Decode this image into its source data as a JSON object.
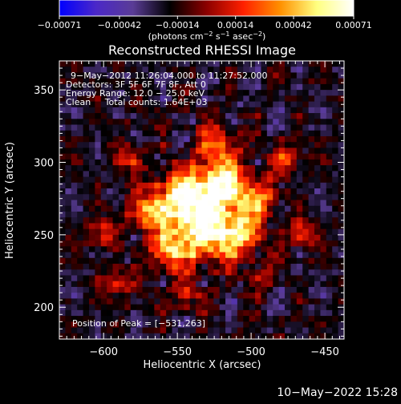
{
  "chart_data": {
    "type": "heatmap",
    "title": "Reconstructed RHESSI Image",
    "xlabel": "Heliocentric X (arcsec)",
    "ylabel": "Heliocentric Y (arcsec)",
    "xlim": [
      -630,
      -437
    ],
    "ylim": [
      178,
      370
    ],
    "x_ticks": [
      -600,
      -550,
      -500,
      -450
    ],
    "y_ticks": [
      200,
      250,
      300,
      350
    ],
    "x_tick_labels": [
      "−600",
      "−550",
      "−500",
      "−450"
    ],
    "y_tick_labels": [
      "200",
      "250",
      "300",
      "350"
    ],
    "colorbar": {
      "ticks": [
        -0.00071,
        -0.00042,
        -0.00014,
        0.00014,
        0.00042,
        0.00071
      ],
      "tick_labels": [
        "−0.00071",
        "−0.00042",
        "−0.00014",
        "0.00014",
        "0.00042",
        "0.00071"
      ],
      "unit_label": {
        "pre": "(photons cm",
        "s1": "−2",
        "mid1": " s",
        "s2": "−1",
        "mid2": " asec",
        "s3": "−2",
        "post": ")"
      },
      "colormap_stops": [
        "#0000ff",
        "#4b28c8",
        "#5a3c96",
        "#000000",
        "#8b0000",
        "#ff2000",
        "#ff9000",
        "#ffff80",
        "#ffffff"
      ]
    },
    "annotations": [
      "9−May−2012 11:26:04.000 to 11:27:52.000",
      "Detectors: 3F 5F 6F 7F 8F, Att 0",
      "Energy Range: 12.0 − 25.0 keV",
      "Clean     Total counts: 1.64E+03"
    ],
    "peak_label": "Position of Peak = [−531,263]",
    "peak": [
      -531,
      263
    ],
    "grid": false
  },
  "footer": "10−May−2022 15:28"
}
